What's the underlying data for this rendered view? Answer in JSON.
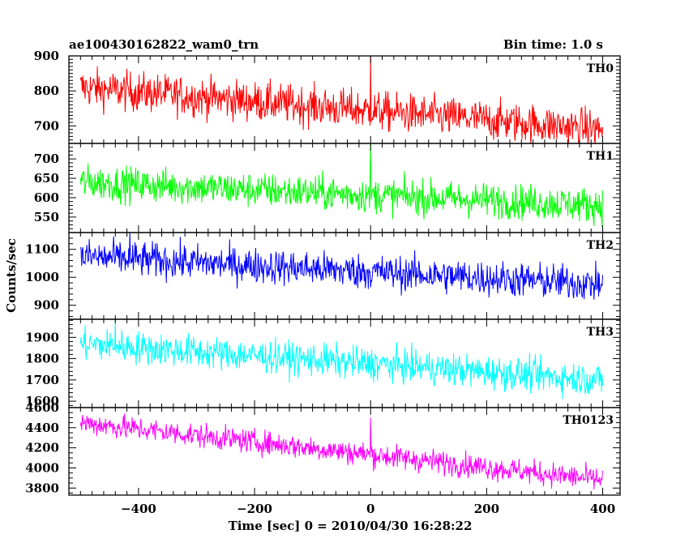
{
  "header": {
    "title": "ae100430162822_wam0_trn",
    "bin_time": "Bin time: 1.0 s"
  },
  "chart_data": {
    "type": "line",
    "xlabel": "Time [sec] 0 = 2010/04/30 16:28:22",
    "ylabel": "Counts/sec",
    "xlim": [
      -520,
      430
    ],
    "xticks": [
      -400,
      -200,
      0,
      200,
      400
    ],
    "panels": [
      {
        "name": "TH0",
        "color": "#ff0000",
        "ylim": [
          650,
          900
        ],
        "yticks": [
          700,
          800,
          900
        ],
        "x_start": -500,
        "x_end": 400,
        "trend_start": 810,
        "trend_end": 690,
        "noise_amplitude": 40,
        "spike": {
          "x": 0,
          "y": 905
        }
      },
      {
        "name": "TH1",
        "color": "#00ff00",
        "ylim": [
          510,
          740
        ],
        "yticks": [
          550,
          600,
          650,
          700
        ],
        "x_start": -500,
        "x_end": 400,
        "trend_start": 640,
        "trend_end": 580,
        "noise_amplitude": 32,
        "spike": {
          "x": 0,
          "y": 740
        }
      },
      {
        "name": "TH2",
        "color": "#0000ff",
        "ylim": [
          850,
          1160
        ],
        "yticks": [
          900,
          1000,
          1100
        ],
        "x_start": -500,
        "x_end": 400,
        "trend_start": 1075,
        "trend_end": 975,
        "noise_amplitude": 45,
        "spike": {
          "x": -415,
          "y": 1160
        }
      },
      {
        "name": "TH3",
        "color": "#00ffff",
        "ylim": [
          1570,
          1985
        ],
        "yticks": [
          1600,
          1700,
          1800,
          1900
        ],
        "x_start": -500,
        "x_end": 400,
        "trend_start": 1870,
        "trend_end": 1700,
        "noise_amplitude": 55,
        "spike": {
          "x": -440,
          "y": 1985
        }
      },
      {
        "name": "TH0123",
        "color": "#ff00ff",
        "ylim": [
          3730,
          4600
        ],
        "yticks": [
          3800,
          4000,
          4200,
          4400,
          4600
        ],
        "x_start": -500,
        "x_end": 400,
        "trend_start": 4450,
        "trend_end": 3880,
        "noise_amplitude": 85,
        "spike": {
          "x": 0,
          "y": 4500
        }
      }
    ]
  }
}
